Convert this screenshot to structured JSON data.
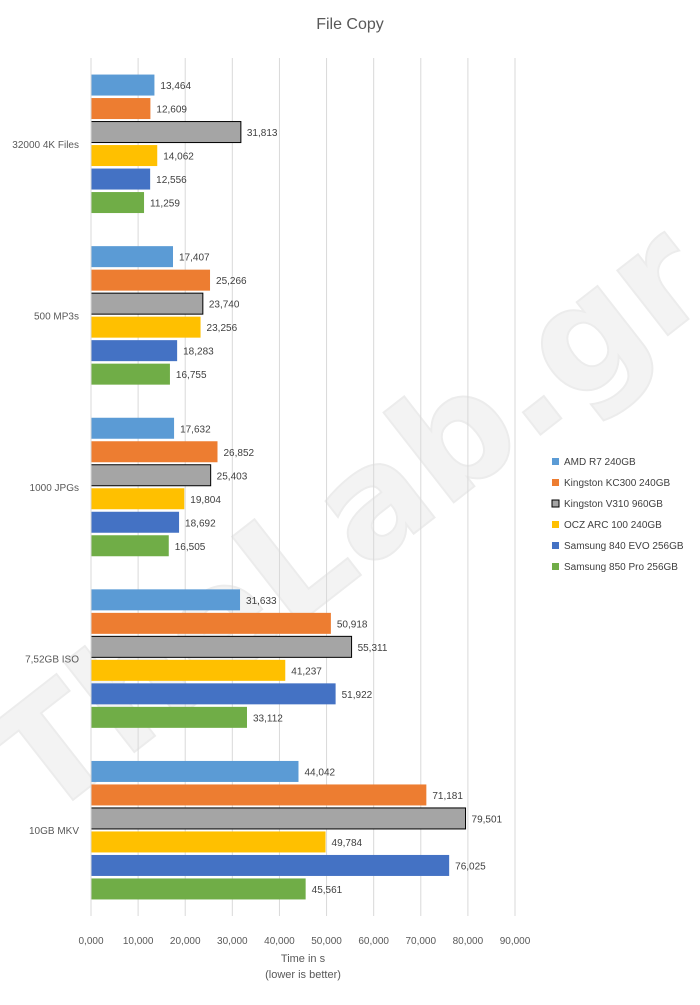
{
  "chart_data": {
    "type": "bar",
    "orientation": "horizontal",
    "title": "File Copy",
    "xlabel": "Time in s",
    "xlabel_note": "(lower is better)",
    "xlim": [
      0,
      90
    ],
    "xticks": [
      "0,000",
      "10,000",
      "20,000",
      "30,000",
      "40,000",
      "50,000",
      "60,000",
      "70,000",
      "80,000",
      "90,000"
    ],
    "grid": "vertical",
    "legend_position": "right",
    "watermark": "TheLab.gr",
    "categories": [
      "32000 4K Files",
      "500 MP3s",
      "1000 JPGs",
      "7,52GB ISO",
      "10GB MKV"
    ],
    "series": [
      {
        "name": "AMD R7 240GB",
        "color": "#5B9BD5",
        "values": [
          13.464,
          17.407,
          17.632,
          31.633,
          44.042
        ],
        "labels": [
          "13,464",
          "17,407",
          "17,632",
          "31,633",
          "44,042"
        ]
      },
      {
        "name": "Kingston KC300 240GB",
        "color": "#ED7D31",
        "values": [
          12.609,
          25.266,
          26.852,
          50.918,
          71.181
        ],
        "labels": [
          "12,609",
          "25,266",
          "26,852",
          "50,918",
          "71,181"
        ]
      },
      {
        "name": "Kingston V310 960GB",
        "color": "#A5A5A5",
        "outline": "#000000",
        "values": [
          31.813,
          23.74,
          25.403,
          55.311,
          79.501
        ],
        "labels": [
          "31,813",
          "23,740",
          "25,403",
          "55,311",
          "79,501"
        ]
      },
      {
        "name": "OCZ ARC 100 240GB",
        "color": "#FFC000",
        "values": [
          14.062,
          23.256,
          19.804,
          41.237,
          49.784
        ],
        "labels": [
          "14,062",
          "23,256",
          "19,804",
          "41,237",
          "49,784"
        ]
      },
      {
        "name": "Samsung 840 EVO 256GB",
        "color": "#4472C4",
        "values": [
          12.556,
          18.283,
          18.692,
          51.922,
          76.025
        ],
        "labels": [
          "12,556",
          "18,283",
          "18,692",
          "51,922",
          "76,025"
        ]
      },
      {
        "name": "Samsung 850 Pro 256GB",
        "color": "#70AD47",
        "values": [
          11.259,
          16.755,
          16.505,
          33.112,
          45.561
        ],
        "labels": [
          "11,259",
          "16,755",
          "16,505",
          "33,112",
          "45,561"
        ]
      }
    ]
  }
}
